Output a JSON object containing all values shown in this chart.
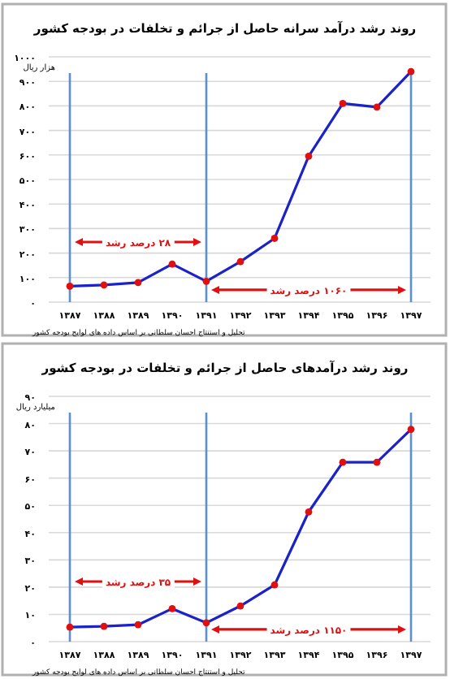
{
  "chart_data": [
    {
      "type": "line",
      "title": "روند رشد درآمد سرانه حاصل از جرائم و تخلفات در بودجه کشور",
      "ylabel": "هزار ریال",
      "categories": [
        "۱۳۸۷",
        "۱۳۸۸",
        "۱۳۸۹",
        "۱۳۹۰",
        "۱۳۹۱",
        "۱۳۹۲",
        "۱۳۹۳",
        "۱۳۹۴",
        "۱۳۹۵",
        "۱۳۹۶",
        "۱۳۹۷"
      ],
      "series": [
        {
          "color": "#1a22c8",
          "values": [
            65,
            70,
            80,
            155,
            85,
            165,
            260,
            595,
            810,
            795,
            940
          ]
        }
      ],
      "ylim": [
        0,
        1000
      ],
      "yticks": [
        {
          "value": 0,
          "label": "۰"
        },
        {
          "value": 100,
          "label": "۱۰۰"
        },
        {
          "value": 200,
          "label": "۲۰۰"
        },
        {
          "value": 300,
          "label": "۳۰۰"
        },
        {
          "value": 400,
          "label": "۴۰۰"
        },
        {
          "value": 500,
          "label": "۵۰۰"
        },
        {
          "value": 600,
          "label": "۶۰۰"
        },
        {
          "value": 700,
          "label": "۷۰۰"
        },
        {
          "value": 800,
          "label": "۸۰۰"
        },
        {
          "value": 900,
          "label": "۹۰۰"
        },
        {
          "value": 1000,
          "label": "۱۰۰۰"
        }
      ],
      "ref_lines": [
        {
          "axis": "x",
          "value": "۱۳۸۷",
          "color": "#5b8fd0"
        },
        {
          "axis": "x",
          "value": "۱۳۹۱",
          "color": "#5b8fd0"
        },
        {
          "axis": "x",
          "value": "۱۳۹۷",
          "color": "#5b8fd0"
        }
      ],
      "annotations": [
        "۲۸ درصد رشد",
        "۱۰۶۰ درصد رشد",
        "تحلیل و استنتاج احسان سلطانی بر اساس داده های لوایح بودجه کشور"
      ],
      "grid": "y",
      "marker": "circle"
    },
    {
      "type": "line",
      "title": "روند رشد درآمدهای حاصل از جرائم و تخلفات در بودجه کشور",
      "ylabel": "میلیارد ریال",
      "categories": [
        "۱۳۸۷",
        "۱۳۸۸",
        "۱۳۸۹",
        "۱۳۹۰",
        "۱۳۹۱",
        "۱۳۹۲",
        "۱۳۹۳",
        "۱۳۹۴",
        "۱۳۹۵",
        "۱۳۹۶",
        "۱۳۹۷"
      ],
      "series": [
        {
          "color": "#1a22c8",
          "values": [
            5.3,
            5.6,
            6.2,
            12.1,
            6.9,
            13.1,
            20.8,
            47.6,
            65.8,
            65.8,
            77.9
          ]
        }
      ],
      "ylim": [
        0,
        90
      ],
      "yticks": [
        {
          "value": 0,
          "label": "۰"
        },
        {
          "value": 10,
          "label": "۱۰"
        },
        {
          "value": 20,
          "label": "۲۰"
        },
        {
          "value": 30,
          "label": "۳۰"
        },
        {
          "value": 40,
          "label": "۴۰"
        },
        {
          "value": 50,
          "label": "۵۰"
        },
        {
          "value": 60,
          "label": "۶۰"
        },
        {
          "value": 70,
          "label": "۷۰"
        },
        {
          "value": 80,
          "label": "۸۰"
        },
        {
          "value": 90,
          "label": "۹۰"
        }
      ],
      "ref_lines": [
        {
          "axis": "x",
          "value": "۱۳۸۷",
          "color": "#5b8fd0"
        },
        {
          "axis": "x",
          "value": "۱۳۹۱",
          "color": "#5b8fd0"
        },
        {
          "axis": "x",
          "value": "۱۳۹۷",
          "color": "#5b8fd0"
        }
      ],
      "annotations": [
        "۳۵ درصد رشد",
        "۱۱۵۰ درصد رشد",
        "تحلیل و استنتاج احسان سلطانی بر اساس داده های لوایح بودجه کشور"
      ],
      "grid": "y",
      "marker": "circle"
    }
  ]
}
